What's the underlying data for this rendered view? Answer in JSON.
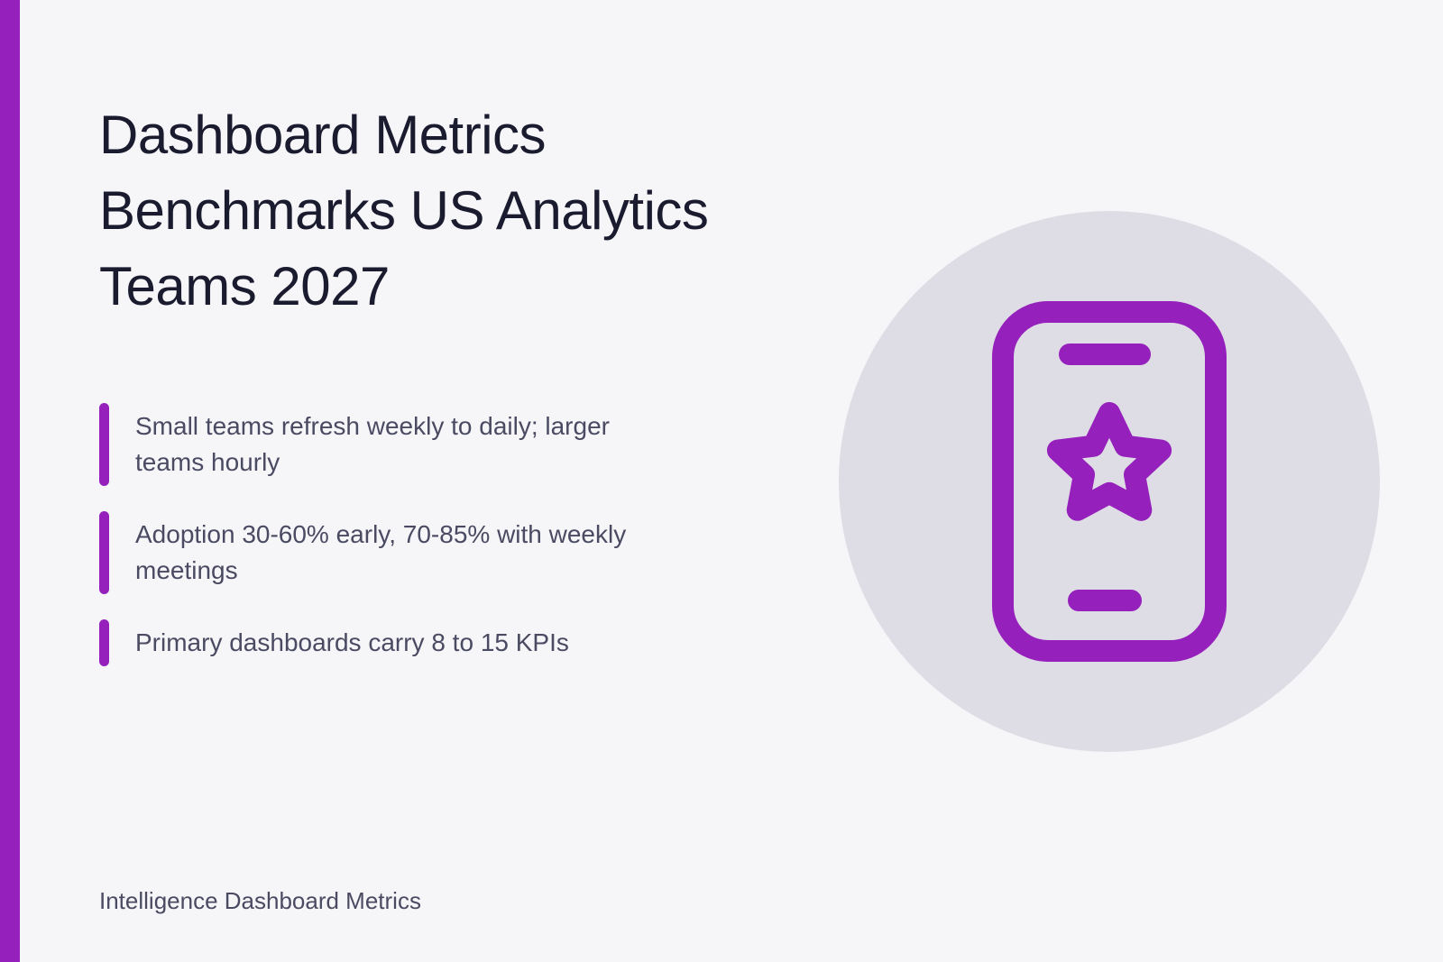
{
  "slide": {
    "title": "Dashboard Metrics Benchmarks US Analytics Teams 2027",
    "bullets": [
      "Small teams refresh weekly to daily; larger teams hourly",
      "Adoption 30-60% early, 70-85% with weekly meetings",
      "Primary dashboards carry 8 to 15 KPIs"
    ],
    "footer": "Intelligence Dashboard Metrics",
    "illustration_icon": "smartphone-star-icon"
  },
  "colors": {
    "accent": "#9520bb",
    "background": "#f6f6f9",
    "title_text": "#1a1b2e",
    "body_text": "#4a4a62",
    "circle": "#dedde5"
  }
}
